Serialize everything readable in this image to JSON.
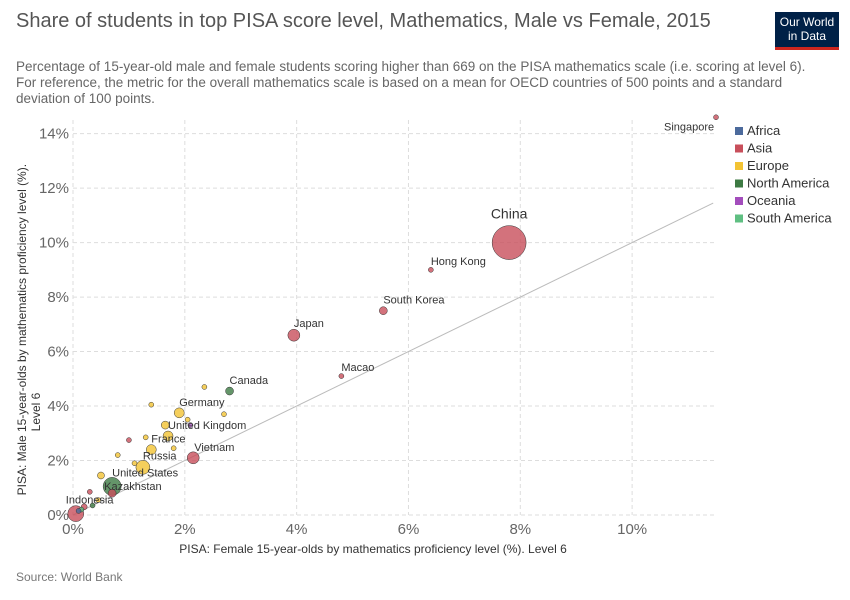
{
  "header": {
    "title": "Share of students in top PISA score level, Mathematics, Male vs Female, 2015",
    "subtitle": "Percentage of 15-year-old male and female students scoring higher than 669 on the PISA mathematics scale (i.e. scoring at level 6). For reference, the metric for the overall mathematics scale is based on a mean for OECD countries of 500 points and a standard deviation of 100 points.",
    "logo_line1": "Our World",
    "logo_line2": "in Data"
  },
  "footer": {
    "source": "Source: World Bank"
  },
  "colors": {
    "Africa": "#4c6a9c",
    "Asia": "#c84f5b",
    "Europe": "#f3c333",
    "North America": "#3d7a43",
    "Oceania": "#a34dbc",
    "South America": "#5fbf82"
  },
  "chart_data": {
    "type": "scatter",
    "xlabel": "PISA: Female 15-year-olds by mathematics proficiency level (%). Level 6",
    "ylabel": "PISA: Male 15-year-olds by mathematics proficiency level (%). Level 6",
    "xlim": [
      0,
      11.5
    ],
    "ylim": [
      0,
      14.5
    ],
    "xticks": [
      "0%",
      "2%",
      "4%",
      "6%",
      "8%",
      "10%"
    ],
    "yticks": [
      "0%",
      "2%",
      "4%",
      "6%",
      "8%",
      "10%",
      "12%",
      "14%"
    ],
    "x_tick_values": [
      0,
      2,
      4,
      6,
      8,
      10
    ],
    "y_tick_values": [
      0,
      2,
      4,
      6,
      8,
      10,
      12,
      14
    ],
    "grid": true,
    "legend": [
      "Africa",
      "Asia",
      "Europe",
      "North America",
      "Oceania",
      "South America"
    ],
    "legend_position": "top-right",
    "reference_line": {
      "x": [
        0,
        11.45
      ],
      "y": [
        0,
        11.45
      ]
    },
    "points": [
      {
        "label": "Singapore",
        "x": 11.5,
        "y": 14.6,
        "r": 2.5,
        "region": "Asia"
      },
      {
        "label": "China",
        "x": 7.8,
        "y": 10.0,
        "r": 17,
        "region": "Asia"
      },
      {
        "label": "Hong Kong",
        "x": 6.4,
        "y": 9.0,
        "r": 2.5,
        "region": "Asia"
      },
      {
        "label": "South Korea",
        "x": 5.55,
        "y": 7.5,
        "r": 4,
        "region": "Asia"
      },
      {
        "label": "Japan",
        "x": 3.95,
        "y": 6.6,
        "r": 6,
        "region": "Asia"
      },
      {
        "label": "Macao",
        "x": 4.8,
        "y": 5.1,
        "r": 2.5,
        "region": "Asia"
      },
      {
        "label": "Canada",
        "x": 2.8,
        "y": 4.55,
        "r": 4,
        "region": "North America"
      },
      {
        "label": "Germany",
        "x": 1.9,
        "y": 3.75,
        "r": 5,
        "region": "Europe"
      },
      {
        "label": "United Kingdom",
        "x": 1.7,
        "y": 2.9,
        "r": 5,
        "region": "Europe"
      },
      {
        "label": "France",
        "x": 1.4,
        "y": 2.4,
        "r": 5,
        "region": "Europe"
      },
      {
        "label": "Vietnam",
        "x": 2.15,
        "y": 2.1,
        "r": 6,
        "region": "Asia"
      },
      {
        "label": "Russia",
        "x": 1.25,
        "y": 1.75,
        "r": 7,
        "region": "Europe"
      },
      {
        "label": "United States",
        "x": 0.7,
        "y": 1.05,
        "r": 9,
        "region": "North America"
      },
      {
        "label": "Kazakhstan",
        "x": 0.7,
        "y": 0.8,
        "r": 4,
        "region": "Asia"
      },
      {
        "label": "Indonesia",
        "x": 0.05,
        "y": 0.05,
        "r": 8,
        "region": "Asia"
      },
      {
        "label": "",
        "x": 2.35,
        "y": 4.7,
        "r": 2.5,
        "region": "Europe"
      },
      {
        "label": "",
        "x": 2.7,
        "y": 3.7,
        "r": 2.5,
        "region": "Europe"
      },
      {
        "label": "",
        "x": 1.4,
        "y": 4.05,
        "r": 2.5,
        "region": "Europe"
      },
      {
        "label": "",
        "x": 1.65,
        "y": 3.3,
        "r": 4,
        "region": "Europe"
      },
      {
        "label": "",
        "x": 2.05,
        "y": 3.5,
        "r": 2.5,
        "region": "Europe"
      },
      {
        "label": "",
        "x": 2.1,
        "y": 3.3,
        "r": 2.5,
        "region": "Oceania"
      },
      {
        "label": "",
        "x": 1.3,
        "y": 2.85,
        "r": 2.5,
        "region": "Europe"
      },
      {
        "label": "",
        "x": 1.0,
        "y": 2.75,
        "r": 2.5,
        "region": "Asia"
      },
      {
        "label": "",
        "x": 1.8,
        "y": 2.45,
        "r": 2.5,
        "region": "Europe"
      },
      {
        "label": "",
        "x": 1.1,
        "y": 1.9,
        "r": 2.5,
        "region": "Europe"
      },
      {
        "label": "",
        "x": 0.8,
        "y": 2.2,
        "r": 2.5,
        "region": "Europe"
      },
      {
        "label": "",
        "x": 0.5,
        "y": 1.45,
        "r": 3.5,
        "region": "Europe"
      },
      {
        "label": "",
        "x": 0.3,
        "y": 0.85,
        "r": 2.5,
        "region": "Asia"
      },
      {
        "label": "",
        "x": 0.45,
        "y": 0.55,
        "r": 2.5,
        "region": "Europe"
      },
      {
        "label": "",
        "x": 0.2,
        "y": 0.3,
        "r": 3,
        "region": "Asia"
      },
      {
        "label": "",
        "x": 0.15,
        "y": 0.2,
        "r": 2.5,
        "region": "South America"
      },
      {
        "label": "",
        "x": 0.1,
        "y": 0.15,
        "r": 2.5,
        "region": "Africa"
      },
      {
        "label": "",
        "x": 0.35,
        "y": 0.35,
        "r": 2.5,
        "region": "North America"
      }
    ]
  }
}
